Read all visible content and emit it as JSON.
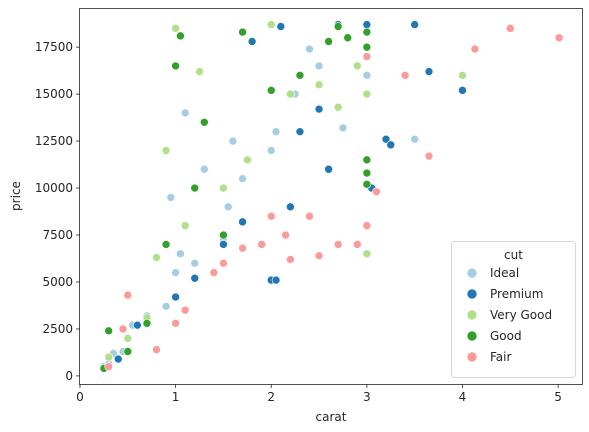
{
  "chart_data": {
    "type": "scatter",
    "xlabel": "carat",
    "ylabel": "price",
    "xlim": [
      0.0,
      5.25
    ],
    "ylim": [
      -430,
      19530
    ],
    "x_ticks": [
      0,
      1,
      2,
      3,
      4,
      5
    ],
    "y_ticks": [
      0,
      2500,
      5000,
      7500,
      10000,
      12500,
      15000,
      17500
    ],
    "grid": false,
    "legend": {
      "title": "cut",
      "placement": "lower-right",
      "entries": [
        "Ideal",
        "Premium",
        "Very Good",
        "Good",
        "Fair"
      ]
    },
    "series": [
      {
        "name": "Ideal",
        "color": "#a6cee3",
        "points": [
          [
            0.25,
            500
          ],
          [
            0.3,
            650
          ],
          [
            0.35,
            1200
          ],
          [
            0.45,
            1300
          ],
          [
            0.55,
            2700
          ],
          [
            0.7,
            3200
          ],
          [
            0.9,
            3700
          ],
          [
            1.0,
            5500
          ],
          [
            1.05,
            6500
          ],
          [
            1.2,
            6000
          ],
          [
            1.5,
            7300
          ],
          [
            1.55,
            9000
          ],
          [
            1.7,
            10500
          ],
          [
            2.0,
            12000
          ],
          [
            2.05,
            13000
          ],
          [
            2.25,
            15000
          ],
          [
            2.5,
            16500
          ],
          [
            2.75,
            13200
          ],
          [
            3.0,
            16000
          ],
          [
            3.5,
            12600
          ],
          [
            1.3,
            11000
          ],
          [
            1.6,
            12500
          ],
          [
            0.95,
            9500
          ],
          [
            1.1,
            14000
          ],
          [
            2.4,
            17400
          ]
        ]
      },
      {
        "name": "Premium",
        "color": "#1f78b4",
        "points": [
          [
            0.3,
            500
          ],
          [
            0.4,
            900
          ],
          [
            0.6,
            2700
          ],
          [
            0.7,
            2800
          ],
          [
            1.0,
            4200
          ],
          [
            1.2,
            5200
          ],
          [
            1.5,
            7000
          ],
          [
            1.7,
            8200
          ],
          [
            2.0,
            5100
          ],
          [
            2.05,
            5100
          ],
          [
            2.2,
            9000
          ],
          [
            2.3,
            13000
          ],
          [
            2.5,
            14200
          ],
          [
            2.6,
            11000
          ],
          [
            3.0,
            18700
          ],
          [
            3.05,
            10000
          ],
          [
            3.2,
            12600
          ],
          [
            3.25,
            12300
          ],
          [
            3.5,
            18700
          ],
          [
            3.65,
            16200
          ],
          [
            4.0,
            15200
          ],
          [
            2.1,
            18600
          ],
          [
            1.8,
            17800
          ],
          [
            2.7,
            18700
          ]
        ]
      },
      {
        "name": "Very Good",
        "color": "#b2df8a",
        "points": [
          [
            0.3,
            1000
          ],
          [
            0.5,
            2000
          ],
          [
            0.7,
            3100
          ],
          [
            0.8,
            6300
          ],
          [
            1.0,
            18500
          ],
          [
            1.1,
            8000
          ],
          [
            1.5,
            10000
          ],
          [
            1.75,
            11500
          ],
          [
            2.0,
            18700
          ],
          [
            2.2,
            15000
          ],
          [
            2.5,
            15500
          ],
          [
            2.7,
            14300
          ],
          [
            3.0,
            6500
          ],
          [
            3.0,
            15000
          ],
          [
            4.0,
            16000
          ],
          [
            1.25,
            16200
          ],
          [
            0.9,
            12000
          ],
          [
            2.9,
            16500
          ]
        ]
      },
      {
        "name": "Good",
        "color": "#33a02c",
        "points": [
          [
            0.25,
            400
          ],
          [
            0.3,
            2400
          ],
          [
            0.5,
            1300
          ],
          [
            0.7,
            2800
          ],
          [
            0.9,
            7000
          ],
          [
            1.0,
            16500
          ],
          [
            1.05,
            18100
          ],
          [
            1.5,
            7500
          ],
          [
            1.7,
            18300
          ],
          [
            2.0,
            15200
          ],
          [
            2.3,
            16000
          ],
          [
            2.7,
            18600
          ],
          [
            2.8,
            18000
          ],
          [
            3.0,
            10200
          ],
          [
            3.0,
            10800
          ],
          [
            3.0,
            11500
          ],
          [
            3.0,
            18300
          ],
          [
            3.0,
            17500
          ],
          [
            1.2,
            10000
          ],
          [
            1.3,
            13500
          ],
          [
            2.6,
            17800
          ]
        ]
      },
      {
        "name": "Fair",
        "color": "#fb9a99",
        "points": [
          [
            0.3,
            500
          ],
          [
            0.45,
            2500
          ],
          [
            0.5,
            4300
          ],
          [
            0.8,
            1400
          ],
          [
            1.0,
            2800
          ],
          [
            1.1,
            3500
          ],
          [
            1.4,
            5500
          ],
          [
            1.5,
            6000
          ],
          [
            1.7,
            6800
          ],
          [
            1.9,
            7000
          ],
          [
            2.0,
            8500
          ],
          [
            2.2,
            6200
          ],
          [
            2.5,
            6400
          ],
          [
            2.7,
            7000
          ],
          [
            2.9,
            7000
          ],
          [
            3.0,
            17000
          ],
          [
            3.0,
            8000
          ],
          [
            3.1,
            9800
          ],
          [
            3.4,
            16000
          ],
          [
            3.65,
            11700
          ],
          [
            4.13,
            17400
          ],
          [
            4.5,
            18500
          ],
          [
            5.01,
            18000
          ],
          [
            2.4,
            8500
          ],
          [
            2.15,
            7500
          ]
        ]
      }
    ]
  }
}
